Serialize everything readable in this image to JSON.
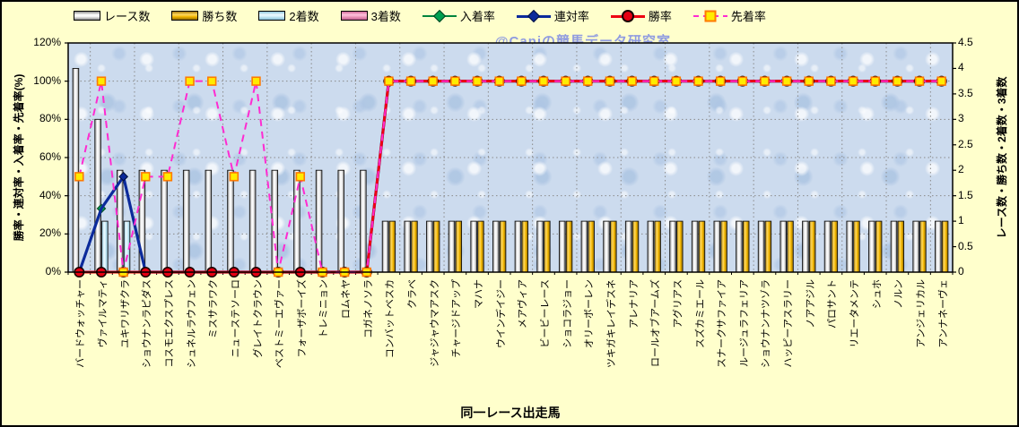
{
  "watermark": "@Caniの競馬データ研究室",
  "colors": {
    "background": "#FFFFCC",
    "plot_fill": "#CCDBEE",
    "race_bar": "#FFFFFF",
    "win_bar": "#F5B800",
    "second_bar": "#CFEEF8",
    "third_bar": "#F5A8C8",
    "nyuchaku_line": "#00843C",
    "rentai_line": "#0B2A9B",
    "shoritsu_line": "#EE0011",
    "senchaku_line": "#FF2BD1",
    "marker_square_fill": "#FFEC00",
    "watermark_color": "#8F9BE0"
  },
  "legend": [
    {
      "label": "レース数",
      "swatch": "bar-race"
    },
    {
      "label": "勝ち数",
      "swatch": "bar-win"
    },
    {
      "label": "2着数",
      "swatch": "bar-second"
    },
    {
      "label": "3着数",
      "swatch": "bar-third"
    },
    {
      "label": "入着率",
      "swatch": "line-green-diamond"
    },
    {
      "label": "連対率",
      "swatch": "line-navy-diamond"
    },
    {
      "label": "勝率",
      "swatch": "line-red-circle"
    },
    {
      "label": "先着率",
      "swatch": "line-magenta-dash-square"
    }
  ],
  "chart_data": {
    "type": "bar+line combo",
    "title": "",
    "xlabel": "同一レース出走馬",
    "left_axis": {
      "title": "勝率・連対率・入着率・先着率(%)",
      "min": 0,
      "max": 120,
      "ticks": [
        "120%",
        "100%",
        "80%",
        "60%",
        "40%",
        "20%",
        "0%"
      ]
    },
    "right_axis": {
      "title": "レース数・勝ち数・2着数・3着数",
      "min": 0,
      "max": 4.5,
      "ticks": [
        "4.5",
        "4",
        "3.5",
        "3",
        "2.5",
        "2",
        "1.5",
        "1",
        "0.5",
        "0"
      ]
    },
    "grid": {
      "horizontal_every_pct": 20,
      "vertical_every_categories": 2
    },
    "categories": [
      "バードウォッチャー",
      "ヴァイルマティ",
      "ユキワリザクラ",
      "ショウナンラピダス",
      "コスモエクスプレス",
      "シュネルラウフェン",
      "ミスサラワク",
      "ニューステソーロ",
      "グレイトクラウン",
      "ベストミーエヴァー",
      "フォーザボーイズ",
      "トレミニョン",
      "ロムネヤ",
      "コガネノソラ",
      "コンバットベスカ",
      "クラベ",
      "ジャジャウマアスク",
      "チャージドアップ",
      "マハナ",
      "ウインデイジー",
      "メアヴィア",
      "ビービーレース",
      "ショコラジョー",
      "オリーボーレン",
      "ツキガキレイデスネ",
      "アレナリア",
      "ロールオブアームズ",
      "アグリアス",
      "スズカミエール",
      "スナークサファイア",
      "ルージュラフェリア",
      "ショウナンナツゾラ",
      "ハッピーアスラリー",
      "ノアアジル",
      "パロサント",
      "リエータメンテ",
      "シュホ",
      "ノルン",
      "アンジェリカル",
      "アンナネーヴェ"
    ],
    "bar_series": [
      {
        "name": "レース数",
        "axis": "right",
        "grad": "gRace",
        "values": [
          4,
          3,
          2,
          2,
          2,
          2,
          2,
          2,
          2,
          2,
          2,
          2,
          2,
          2,
          1,
          1,
          1,
          1,
          1,
          1,
          1,
          1,
          1,
          1,
          1,
          1,
          1,
          1,
          1,
          1,
          1,
          1,
          1,
          1,
          1,
          1,
          1,
          1,
          1,
          1
        ]
      },
      {
        "name": "勝ち数",
        "axis": "right",
        "grad": "gWin",
        "values": [
          0,
          0,
          0,
          0,
          0,
          0,
          0,
          0,
          0,
          0,
          0,
          0,
          0,
          0,
          1,
          1,
          1,
          1,
          1,
          1,
          1,
          1,
          1,
          1,
          1,
          1,
          1,
          1,
          1,
          1,
          1,
          1,
          1,
          1,
          1,
          1,
          1,
          1,
          1,
          1
        ]
      },
      {
        "name": "2着数",
        "axis": "right",
        "grad": "gSecond",
        "values": [
          0,
          1,
          1,
          0,
          0,
          0,
          0,
          0,
          0,
          0,
          0,
          0,
          0,
          0,
          0,
          0,
          0,
          0,
          0,
          0,
          0,
          0,
          0,
          0,
          0,
          0,
          0,
          0,
          0,
          0,
          0,
          0,
          0,
          0,
          0,
          0,
          0,
          0,
          0,
          0
        ]
      },
      {
        "name": "3着数",
        "axis": "right",
        "grad": "gThird",
        "values": [
          0,
          0,
          0,
          0,
          0,
          0,
          0,
          0,
          0,
          0,
          0,
          0,
          0,
          0,
          0,
          0,
          0,
          0,
          0,
          0,
          0,
          0,
          0,
          0,
          0,
          0,
          0,
          0,
          0,
          0,
          0,
          0,
          0,
          0,
          0,
          0,
          0,
          0,
          0,
          0
        ]
      }
    ],
    "line_series": [
      {
        "name": "入着率",
        "axis": "left",
        "color": "#00843C",
        "width": 1.6,
        "marker": "diamond",
        "marker_fill": "#00A050",
        "marker_stroke": "#00431f",
        "values": [
          0,
          33.3,
          50,
          0,
          0,
          0,
          0,
          0,
          0,
          0,
          0,
          0,
          0,
          0,
          100,
          100,
          100,
          100,
          100,
          100,
          100,
          100,
          100,
          100,
          100,
          100,
          100,
          100,
          100,
          100,
          100,
          100,
          100,
          100,
          100,
          100,
          100,
          100,
          100,
          100
        ]
      },
      {
        "name": "連対率",
        "axis": "left",
        "color": "#0B2A9B",
        "width": 3.2,
        "marker": "diamond",
        "marker_fill": "#0B2A9B",
        "marker_stroke": "#04103f",
        "marker_skip": [
          1
        ],
        "values": [
          0,
          33.3,
          50,
          0,
          0,
          0,
          0,
          0,
          0,
          0,
          0,
          0,
          0,
          0,
          100,
          100,
          100,
          100,
          100,
          100,
          100,
          100,
          100,
          100,
          100,
          100,
          100,
          100,
          100,
          100,
          100,
          100,
          100,
          100,
          100,
          100,
          100,
          100,
          100,
          100
        ]
      },
      {
        "name": "勝率",
        "axis": "left",
        "color": "#EE0011",
        "width": 3,
        "marker": "circle",
        "marker_fill": "#E60012",
        "marker_stroke": "#1a0000",
        "values": [
          0,
          0,
          0,
          0,
          0,
          0,
          0,
          0,
          0,
          0,
          0,
          0,
          0,
          0,
          100,
          100,
          100,
          100,
          100,
          100,
          100,
          100,
          100,
          100,
          100,
          100,
          100,
          100,
          100,
          100,
          100,
          100,
          100,
          100,
          100,
          100,
          100,
          100,
          100,
          100
        ]
      },
      {
        "name": "先着率",
        "axis": "left",
        "color": "#FF2BD1",
        "width": 2,
        "dash": "8 6",
        "marker": "square",
        "marker_fill": "#FFEC00",
        "marker_stroke": "#ff7a00",
        "values": [
          50,
          100,
          0,
          50,
          50,
          100,
          100,
          50,
          100,
          0,
          50,
          0,
          0,
          0,
          100,
          100,
          100,
          100,
          100,
          100,
          100,
          100,
          100,
          100,
          100,
          100,
          100,
          100,
          100,
          100,
          100,
          100,
          100,
          100,
          100,
          100,
          100,
          100,
          100,
          100
        ]
      }
    ]
  }
}
